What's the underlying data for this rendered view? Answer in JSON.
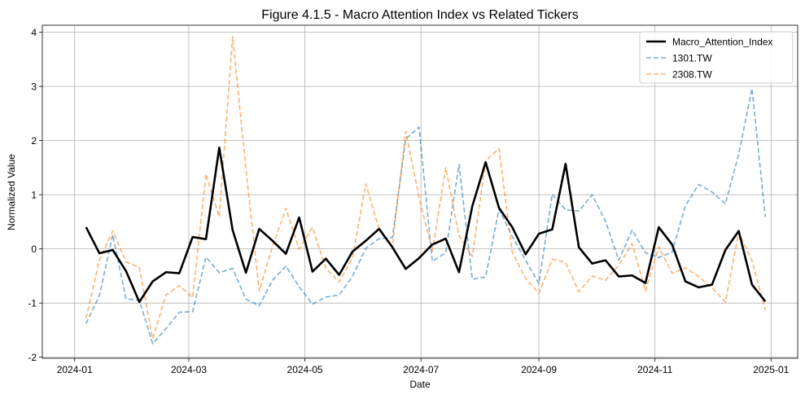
{
  "chart_data": {
    "type": "line",
    "title": "Figure 4.1.5 - Macro Attention Index vs Related Tickers",
    "xlabel": "Date",
    "ylabel": "Normalized Value",
    "grid": true,
    "legend_position": "top-right",
    "xlim": [
      "2023-12-15",
      "2025-01-15"
    ],
    "ylim": [
      -2.02,
      4.13
    ],
    "x_ticks": [
      "2024-01-01",
      "2024-03-01",
      "2024-05-01",
      "2024-07-01",
      "2024-09-01",
      "2024-11-01",
      "2025-01-01"
    ],
    "x_tick_labels": [
      "2024-01",
      "2024-03",
      "2024-05",
      "2024-07",
      "2024-09",
      "2024-11",
      "2025-01"
    ],
    "y_ticks": [
      -2,
      -1,
      0,
      1,
      2,
      3,
      4
    ],
    "y_tick_labels": [
      "-2",
      "-1",
      "0",
      "1",
      "2",
      "3",
      "4"
    ],
    "x": [
      "2024-01-07",
      "2024-01-14",
      "2024-01-21",
      "2024-01-28",
      "2024-02-04",
      "2024-02-11",
      "2024-02-18",
      "2024-02-25",
      "2024-03-03",
      "2024-03-10",
      "2024-03-17",
      "2024-03-24",
      "2024-03-31",
      "2024-04-07",
      "2024-04-14",
      "2024-04-21",
      "2024-04-28",
      "2024-05-05",
      "2024-05-12",
      "2024-05-19",
      "2024-05-26",
      "2024-06-02",
      "2024-06-09",
      "2024-06-16",
      "2024-06-23",
      "2024-06-30",
      "2024-07-07",
      "2024-07-14",
      "2024-07-21",
      "2024-07-28",
      "2024-08-04",
      "2024-08-11",
      "2024-08-18",
      "2024-08-25",
      "2024-09-01",
      "2024-09-08",
      "2024-09-15",
      "2024-09-22",
      "2024-09-29",
      "2024-10-06",
      "2024-10-13",
      "2024-10-20",
      "2024-10-27",
      "2024-11-03",
      "2024-11-10",
      "2024-11-17",
      "2024-11-24",
      "2024-12-01",
      "2024-12-08",
      "2024-12-15",
      "2024-12-22",
      "2024-12-29"
    ],
    "series": [
      {
        "name": "Macro_Attention_Index",
        "color": "#000000",
        "style": "solid",
        "values": [
          0.4,
          -0.08,
          -0.02,
          -0.41,
          -0.98,
          -0.6,
          -0.43,
          -0.45,
          0.22,
          0.18,
          1.87,
          0.35,
          -0.44,
          0.37,
          0.15,
          -0.09,
          0.58,
          -0.42,
          -0.18,
          -0.48,
          -0.05,
          0.15,
          0.37,
          0.03,
          -0.37,
          -0.17,
          0.08,
          0.19,
          -0.43,
          0.79,
          1.6,
          0.76,
          0.4,
          -0.1,
          0.28,
          0.36,
          1.57,
          0.03,
          -0.27,
          -0.21,
          -0.51,
          -0.49,
          -0.63,
          0.4,
          0.08,
          -0.6,
          -0.71,
          -0.66,
          -0.02,
          0.33,
          -0.66,
          -0.97
        ]
      },
      {
        "name": "1301.TW",
        "color": "#1f77b4",
        "style": "dashed",
        "values": [
          -1.38,
          -0.86,
          0.26,
          -0.92,
          -0.95,
          -1.75,
          -1.47,
          -1.17,
          -1.16,
          -0.15,
          -0.44,
          -0.36,
          -0.93,
          -1.05,
          -0.58,
          -0.32,
          -0.7,
          -1.02,
          -0.89,
          -0.85,
          -0.51,
          0.01,
          0.19,
          0.21,
          2.03,
          2.25,
          -0.23,
          -0.07,
          1.56,
          -0.56,
          -0.52,
          0.73,
          0.23,
          -0.21,
          -0.64,
          1.01,
          0.72,
          0.7,
          1.0,
          0.51,
          -0.21,
          0.35,
          -0.07,
          -0.16,
          -0.06,
          0.8,
          1.19,
          1.05,
          0.83,
          1.75,
          2.96,
          0.59
        ]
      },
      {
        "name": "2308.TW",
        "color": "#ff7f0e",
        "style": "dashed",
        "values": [
          -1.28,
          -0.21,
          0.33,
          -0.24,
          -0.34,
          -1.66,
          -0.85,
          -0.68,
          -0.9,
          1.38,
          0.59,
          3.92,
          1.48,
          -0.78,
          0.05,
          0.75,
          0.0,
          0.4,
          -0.36,
          -0.61,
          -0.17,
          1.2,
          0.36,
          0.05,
          2.17,
          0.95,
          -0.04,
          1.5,
          0.24,
          -0.14,
          1.63,
          1.85,
          -0.06,
          -0.55,
          -0.82,
          -0.19,
          -0.25,
          -0.79,
          -0.5,
          -0.58,
          -0.3,
          0.1,
          -0.78,
          0.04,
          -0.45,
          -0.35,
          -0.51,
          -0.72,
          -0.98,
          0.3,
          -0.22,
          -1.14
        ]
      }
    ]
  }
}
